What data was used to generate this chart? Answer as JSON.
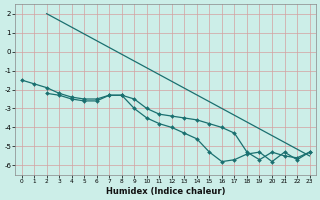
{
  "xlabel": "Humidex (Indice chaleur)",
  "xlim_min": -0.5,
  "xlim_max": 23.5,
  "ylim_min": -6.5,
  "ylim_max": 2.5,
  "yticks": [
    2,
    1,
    0,
    -1,
    -2,
    -3,
    -4,
    -5,
    -6
  ],
  "xticks": [
    0,
    1,
    2,
    3,
    4,
    5,
    6,
    7,
    8,
    9,
    10,
    11,
    12,
    13,
    14,
    15,
    16,
    17,
    18,
    19,
    20,
    21,
    22,
    23
  ],
  "background_color": "#cceee8",
  "line_color": "#1a7070",
  "curve1_x": [
    2,
    23
  ],
  "curve1_y": [
    2.0,
    -5.5
  ],
  "curve2_x": [
    0,
    1,
    2,
    3,
    4,
    5,
    6,
    7,
    8,
    9,
    10,
    11,
    12,
    13,
    14,
    15,
    16,
    17,
    18,
    19,
    20,
    21,
    22,
    23
  ],
  "curve2_y": [
    -1.5,
    -1.7,
    -1.9,
    -2.2,
    -2.4,
    -2.5,
    -2.5,
    -2.3,
    -2.3,
    -2.5,
    -3.0,
    -3.3,
    -3.4,
    -3.5,
    -3.6,
    -3.8,
    -4.0,
    -4.3,
    -5.3,
    -5.7,
    -5.3,
    -5.5,
    -5.6,
    -5.3
  ],
  "curve3_x": [
    2,
    3,
    4,
    5,
    6,
    7,
    8,
    9,
    10,
    11,
    12,
    13,
    14,
    15,
    16,
    17,
    18,
    19,
    20,
    21,
    22,
    23
  ],
  "curve3_y": [
    -2.2,
    -2.3,
    -2.5,
    -2.6,
    -2.6,
    -2.3,
    -2.3,
    -3.0,
    -3.5,
    -3.8,
    -4.0,
    -4.3,
    -4.6,
    -5.3,
    -5.8,
    -5.7,
    -5.4,
    -5.3,
    -5.8,
    -5.3,
    -5.7,
    -5.3
  ]
}
